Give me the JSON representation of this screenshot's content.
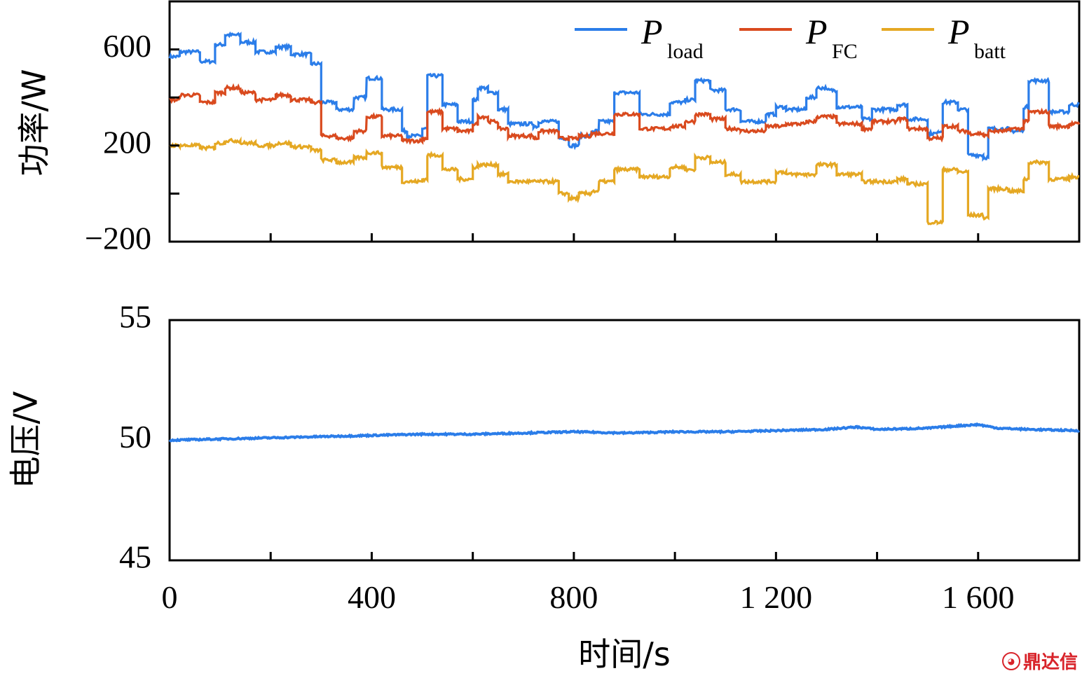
{
  "chart_data": [
    {
      "type": "line",
      "ylabel": "功率/W",
      "xlim": [
        0,
        1800
      ],
      "ylim": [
        -200,
        800
      ],
      "yticks": [
        -200,
        0,
        200,
        400,
        600
      ],
      "ytick_labels": [
        "−200",
        "",
        "200",
        "",
        "600"
      ],
      "xticks": [
        0,
        200,
        400,
        600,
        800,
        1000,
        1200,
        1400,
        1600
      ],
      "legend_position": "top-right",
      "series": [
        {
          "name_main": "P",
          "name_sub": "load",
          "color": "#2b7de9",
          "segments": [
            [
              0,
              570
            ],
            [
              20,
              590
            ],
            [
              60,
              550
            ],
            [
              90,
              620
            ],
            [
              110,
              660
            ],
            [
              140,
              630
            ],
            [
              170,
              590
            ],
            [
              210,
              610
            ],
            [
              240,
              580
            ],
            [
              280,
              540
            ],
            [
              300,
              380
            ],
            [
              330,
              350
            ],
            [
              365,
              400
            ],
            [
              390,
              480
            ],
            [
              420,
              350
            ],
            [
              460,
              260
            ],
            [
              470,
              240
            ],
            [
              500,
              270
            ],
            [
              510,
              490
            ],
            [
              540,
              370
            ],
            [
              570,
              300
            ],
            [
              600,
              390
            ],
            [
              610,
              440
            ],
            [
              630,
              420
            ],
            [
              650,
              350
            ],
            [
              670,
              290
            ],
            [
              720,
              280
            ],
            [
              730,
              300
            ],
            [
              770,
              230
            ],
            [
              790,
              200
            ],
            [
              810,
              240
            ],
            [
              835,
              260
            ],
            [
              850,
              300
            ],
            [
              880,
              420
            ],
            [
              930,
              330
            ],
            [
              990,
              380
            ],
            [
              1020,
              390
            ],
            [
              1040,
              470
            ],
            [
              1070,
              430
            ],
            [
              1100,
              350
            ],
            [
              1130,
              300
            ],
            [
              1180,
              330
            ],
            [
              1200,
              360
            ],
            [
              1220,
              350
            ],
            [
              1260,
              400
            ],
            [
              1280,
              440
            ],
            [
              1300,
              430
            ],
            [
              1320,
              360
            ],
            [
              1370,
              310
            ],
            [
              1390,
              350
            ],
            [
              1440,
              370
            ],
            [
              1460,
              310
            ],
            [
              1500,
              250
            ],
            [
              1520,
              260
            ],
            [
              1530,
              380
            ],
            [
              1560,
              350
            ],
            [
              1580,
              160
            ],
            [
              1610,
              150
            ],
            [
              1620,
              270
            ],
            [
              1660,
              260
            ],
            [
              1690,
              360
            ],
            [
              1700,
              470
            ],
            [
              1740,
              340
            ],
            [
              1780,
              370
            ]
          ]
        },
        {
          "name_main": "P",
          "name_sub": "FC",
          "color": "#d94a1e",
          "segments": [
            [
              0,
              390
            ],
            [
              20,
              410
            ],
            [
              60,
              380
            ],
            [
              90,
              420
            ],
            [
              110,
              440
            ],
            [
              140,
              420
            ],
            [
              170,
              390
            ],
            [
              210,
              410
            ],
            [
              240,
              390
            ],
            [
              280,
              380
            ],
            [
              300,
              240
            ],
            [
              330,
              230
            ],
            [
              365,
              260
            ],
            [
              390,
              320
            ],
            [
              420,
              240
            ],
            [
              460,
              220
            ],
            [
              500,
              230
            ],
            [
              510,
              340
            ],
            [
              540,
              270
            ],
            [
              570,
              260
            ],
            [
              600,
              290
            ],
            [
              610,
              320
            ],
            [
              630,
              300
            ],
            [
              650,
              270
            ],
            [
              670,
              240
            ],
            [
              720,
              230
            ],
            [
              730,
              260
            ],
            [
              770,
              230
            ],
            [
              790,
              230
            ],
            [
              810,
              240
            ],
            [
              835,
              250
            ],
            [
              850,
              250
            ],
            [
              880,
              330
            ],
            [
              930,
              270
            ],
            [
              990,
              280
            ],
            [
              1020,
              300
            ],
            [
              1040,
              330
            ],
            [
              1070,
              310
            ],
            [
              1100,
              270
            ],
            [
              1130,
              260
            ],
            [
              1180,
              280
            ],
            [
              1200,
              280
            ],
            [
              1220,
              290
            ],
            [
              1260,
              300
            ],
            [
              1280,
              320
            ],
            [
              1300,
              320
            ],
            [
              1320,
              290
            ],
            [
              1370,
              270
            ],
            [
              1390,
              300
            ],
            [
              1440,
              310
            ],
            [
              1460,
              270
            ],
            [
              1500,
              230
            ],
            [
              1520,
              230
            ],
            [
              1530,
              280
            ],
            [
              1560,
              260
            ],
            [
              1580,
              250
            ],
            [
              1610,
              240
            ],
            [
              1620,
              260
            ],
            [
              1660,
              270
            ],
            [
              1690,
              300
            ],
            [
              1700,
              340
            ],
            [
              1740,
              280
            ],
            [
              1780,
              290
            ]
          ]
        },
        {
          "name_main": "P",
          "name_sub": "batt",
          "color": "#e5a823",
          "segments": [
            [
              0,
              200
            ],
            [
              20,
              200
            ],
            [
              60,
              190
            ],
            [
              90,
              210
            ],
            [
              110,
              220
            ],
            [
              140,
              210
            ],
            [
              170,
              200
            ],
            [
              210,
              210
            ],
            [
              240,
              195
            ],
            [
              280,
              180
            ],
            [
              300,
              140
            ],
            [
              330,
              130
            ],
            [
              365,
              150
            ],
            [
              390,
              170
            ],
            [
              420,
              110
            ],
            [
              460,
              50
            ],
            [
              500,
              60
            ],
            [
              510,
              160
            ],
            [
              540,
              100
            ],
            [
              570,
              60
            ],
            [
              600,
              110
            ],
            [
              610,
              120
            ],
            [
              630,
              120
            ],
            [
              650,
              80
            ],
            [
              670,
              50
            ],
            [
              720,
              50
            ],
            [
              730,
              50
            ],
            [
              770,
              0
            ],
            [
              790,
              -20
            ],
            [
              810,
              0
            ],
            [
              835,
              10
            ],
            [
              850,
              50
            ],
            [
              880,
              100
            ],
            [
              930,
              70
            ],
            [
              990,
              110
            ],
            [
              1020,
              100
            ],
            [
              1040,
              150
            ],
            [
              1070,
              130
            ],
            [
              1100,
              80
            ],
            [
              1130,
              50
            ],
            [
              1180,
              50
            ],
            [
              1200,
              90
            ],
            [
              1220,
              80
            ],
            [
              1260,
              80
            ],
            [
              1280,
              120
            ],
            [
              1300,
              120
            ],
            [
              1320,
              80
            ],
            [
              1370,
              50
            ],
            [
              1390,
              50
            ],
            [
              1440,
              60
            ],
            [
              1460,
              40
            ],
            [
              1500,
              -120
            ],
            [
              1520,
              -120
            ],
            [
              1530,
              100
            ],
            [
              1560,
              90
            ],
            [
              1580,
              -90
            ],
            [
              1610,
              -100
            ],
            [
              1620,
              20
            ],
            [
              1660,
              10
            ],
            [
              1690,
              60
            ],
            [
              1700,
              130
            ],
            [
              1740,
              60
            ],
            [
              1780,
              70
            ]
          ]
        }
      ]
    },
    {
      "type": "line",
      "ylabel": "电压/V",
      "xlabel": "时间/s",
      "xlim": [
        0,
        1800
      ],
      "ylim": [
        45,
        55
      ],
      "yticks": [
        45,
        50,
        55
      ],
      "ytick_labels": [
        "45",
        "50",
        "55"
      ],
      "xticks": [
        0,
        200,
        400,
        600,
        800,
        1000,
        1200,
        1400,
        1600
      ],
      "xtick_labels": [
        "0",
        "",
        "400",
        "",
        "800",
        "",
        "1 200",
        "",
        "1 600"
      ],
      "series": [
        {
          "color": "#2b7de9",
          "points": [
            [
              0,
              50.0
            ],
            [
              100,
              50.05
            ],
            [
              200,
              50.1
            ],
            [
              300,
              50.15
            ],
            [
              400,
              50.2
            ],
            [
              500,
              50.25
            ],
            [
              600,
              50.25
            ],
            [
              700,
              50.3
            ],
            [
              800,
              50.35
            ],
            [
              900,
              50.3
            ],
            [
              1000,
              50.35
            ],
            [
              1100,
              50.35
            ],
            [
              1200,
              50.4
            ],
            [
              1300,
              50.45
            ],
            [
              1360,
              50.55
            ],
            [
              1400,
              50.45
            ],
            [
              1500,
              50.5
            ],
            [
              1560,
              50.6
            ],
            [
              1600,
              50.65
            ],
            [
              1640,
              50.5
            ],
            [
              1700,
              50.45
            ],
            [
              1800,
              50.4
            ]
          ]
        }
      ]
    }
  ],
  "watermark": {
    "icon": "fox-logo-icon",
    "text": "鼎达信"
  }
}
